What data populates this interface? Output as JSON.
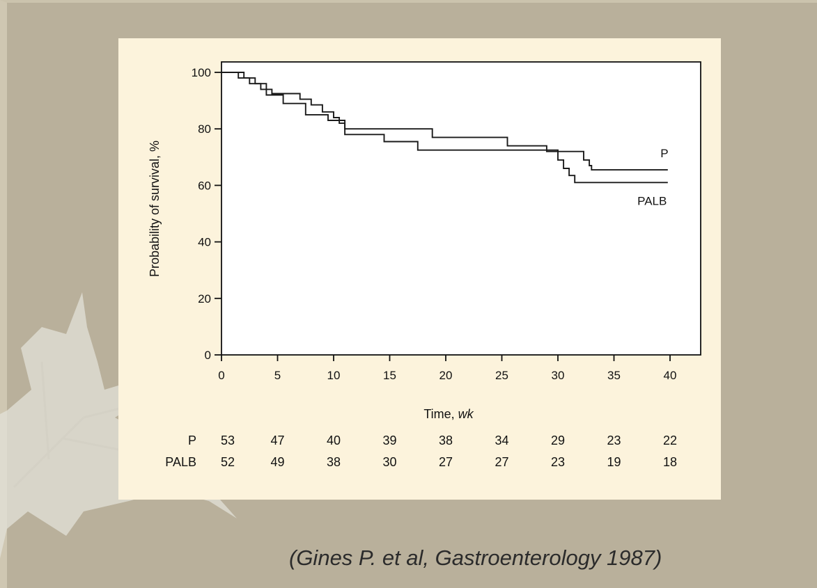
{
  "chart_data": {
    "type": "line",
    "xlabel": "Time, ",
    "xlabel_unit": "wk",
    "ylabel": "Probability of survival, %",
    "xlim": [
      0,
      40
    ],
    "ylim": [
      0,
      100
    ],
    "x_ticks": [
      0,
      5,
      10,
      15,
      20,
      25,
      30,
      35,
      40
    ],
    "y_ticks": [
      0,
      20,
      40,
      60,
      80,
      100
    ],
    "grid": false,
    "line_color": "#1a1a1a",
    "series": [
      {
        "name": "P",
        "x": [
          0,
          1.5,
          2.5,
          3.5,
          4.5,
          6,
          7,
          8,
          9,
          10,
          10.5,
          11,
          18.8,
          25.5,
          29,
          32.3,
          32.8,
          33,
          39.8
        ],
        "y": [
          100,
          98,
          96,
          94,
          92.5,
          92.5,
          90.5,
          88.5,
          86,
          84,
          82,
          80,
          77,
          74,
          72,
          69,
          67,
          65.5,
          65.5
        ]
      },
      {
        "name": "PALB",
        "x": [
          0,
          2,
          3,
          4,
          5.5,
          7.5,
          9.5,
          11,
          14.5,
          17.5,
          29.5,
          30,
          30.5,
          31,
          31.5,
          39.8
        ],
        "y": [
          100,
          98,
          96,
          92,
          89,
          85,
          83,
          78,
          75.5,
          72.5,
          72.5,
          69,
          66,
          63.5,
          61,
          61
        ]
      }
    ],
    "risk_table": {
      "rows": [
        {
          "label": "P",
          "values": [
            53,
            47,
            40,
            39,
            38,
            34,
            29,
            23,
            22
          ]
        },
        {
          "label": "PALB",
          "values": [
            52,
            49,
            38,
            30,
            27,
            27,
            23,
            19,
            18
          ]
        }
      ]
    }
  },
  "citation": "(Gines P. et al, Gastroenterology 1987)",
  "colors": {
    "background": "#b9b09b",
    "panel": "#fcf3dc",
    "plot_area": "#ffffff",
    "ink": "#111111"
  }
}
